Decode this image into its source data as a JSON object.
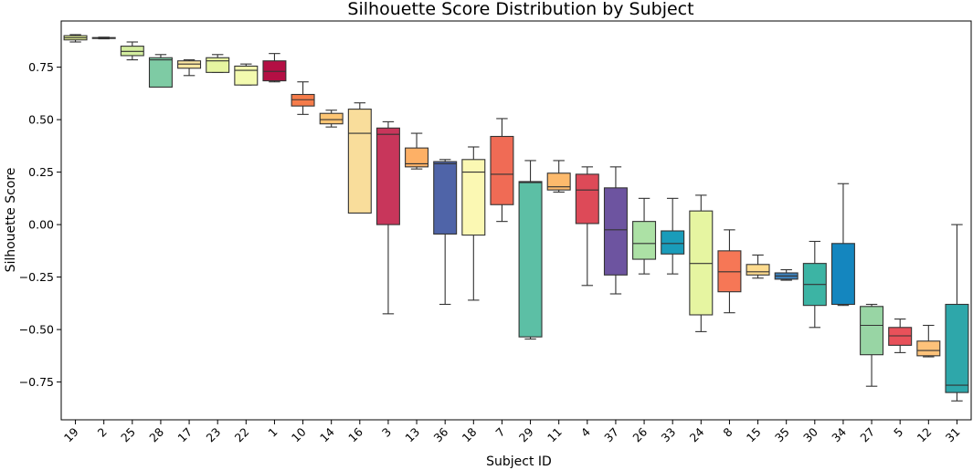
{
  "chart_data": {
    "type": "box",
    "title": "Silhouette Score Distribution by Subject",
    "xlabel": "Subject ID",
    "ylabel": "Silhouette Score",
    "ylim": [
      -0.93,
      0.97
    ],
    "yticks": [
      -0.75,
      -0.5,
      -0.25,
      0.0,
      0.25,
      0.5,
      0.75
    ],
    "ytick_labels": [
      "−0.75",
      "−0.50",
      "−0.25",
      "0.00",
      "0.25",
      "0.50",
      "0.75"
    ],
    "grid": false,
    "legend": "none",
    "categories": [
      "19",
      "2",
      "25",
      "28",
      "17",
      "23",
      "22",
      "1",
      "10",
      "14",
      "16",
      "3",
      "13",
      "36",
      "18",
      "7",
      "29",
      "11",
      "4",
      "37",
      "26",
      "33",
      "24",
      "8",
      "15",
      "35",
      "30",
      "34",
      "27",
      "5",
      "12",
      "31"
    ],
    "boxes": [
      {
        "id": "19",
        "min": 0.87,
        "q1": 0.88,
        "median": 0.89,
        "q3": 0.9,
        "max": 0.905,
        "color": "#e6f598"
      },
      {
        "id": "2",
        "min": 0.885,
        "q1": 0.887,
        "median": 0.889,
        "q3": 0.891,
        "max": 0.893,
        "color": "#abdda4"
      },
      {
        "id": "25",
        "min": 0.785,
        "q1": 0.805,
        "median": 0.825,
        "q3": 0.85,
        "max": 0.87,
        "color": "#d4ee9f"
      },
      {
        "id": "28",
        "min": 0.655,
        "q1": 0.655,
        "median": 0.785,
        "q3": 0.795,
        "max": 0.81,
        "color": "#7ecba4"
      },
      {
        "id": "17",
        "min": 0.71,
        "q1": 0.745,
        "median": 0.765,
        "q3": 0.78,
        "max": 0.785,
        "color": "#fee8a2"
      },
      {
        "id": "23",
        "min": 0.725,
        "q1": 0.725,
        "median": 0.78,
        "q3": 0.795,
        "max": 0.81,
        "color": "#e6f5a1"
      },
      {
        "id": "22",
        "min": 0.665,
        "q1": 0.665,
        "median": 0.735,
        "q3": 0.755,
        "max": 0.765,
        "color": "#f3faaf"
      },
      {
        "id": "1",
        "min": 0.68,
        "q1": 0.685,
        "median": 0.73,
        "q3": 0.78,
        "max": 0.815,
        "color": "#b40f44"
      },
      {
        "id": "10",
        "min": 0.525,
        "q1": 0.565,
        "median": 0.595,
        "q3": 0.62,
        "max": 0.68,
        "color": "#f67c4a"
      },
      {
        "id": "14",
        "min": 0.465,
        "q1": 0.48,
        "median": 0.5,
        "q3": 0.53,
        "max": 0.545,
        "color": "#fdc574"
      },
      {
        "id": "16",
        "min": 0.055,
        "q1": 0.055,
        "median": 0.435,
        "q3": 0.55,
        "max": 0.58,
        "color": "#f9dd9b"
      },
      {
        "id": "3",
        "min": -0.425,
        "q1": 0.0,
        "median": 0.43,
        "q3": 0.46,
        "max": 0.49,
        "color": "#c8365b"
      },
      {
        "id": "13",
        "min": 0.265,
        "q1": 0.275,
        "median": 0.29,
        "q3": 0.365,
        "max": 0.435,
        "color": "#fdb066"
      },
      {
        "id": "36",
        "min": -0.38,
        "q1": -0.045,
        "median": 0.29,
        "q3": 0.3,
        "max": 0.31,
        "color": "#4f64a8"
      },
      {
        "id": "18",
        "min": -0.36,
        "q1": -0.05,
        "median": 0.25,
        "q3": 0.31,
        "max": 0.37,
        "color": "#fbf8b3"
      },
      {
        "id": "7",
        "min": 0.015,
        "q1": 0.095,
        "median": 0.24,
        "q3": 0.42,
        "max": 0.505,
        "color": "#f06b55"
      },
      {
        "id": "29",
        "min": -0.545,
        "q1": -0.535,
        "median": 0.2,
        "q3": 0.205,
        "max": 0.305,
        "color": "#5cbfa5"
      },
      {
        "id": "11",
        "min": 0.155,
        "q1": 0.165,
        "median": 0.18,
        "q3": 0.245,
        "max": 0.305,
        "color": "#fdba6c"
      },
      {
        "id": "4",
        "min": -0.29,
        "q1": 0.005,
        "median": 0.165,
        "q3": 0.24,
        "max": 0.275,
        "color": "#dd4a58"
      },
      {
        "id": "37",
        "min": -0.33,
        "q1": -0.24,
        "median": -0.025,
        "q3": 0.175,
        "max": 0.275,
        "color": "#6d54a0"
      },
      {
        "id": "26",
        "min": -0.235,
        "q1": -0.165,
        "median": -0.09,
        "q3": 0.015,
        "max": 0.125,
        "color": "#ace1a5"
      },
      {
        "id": "33",
        "min": -0.235,
        "q1": -0.14,
        "median": -0.09,
        "q3": -0.03,
        "max": 0.125,
        "color": "#1a9cba"
      },
      {
        "id": "24",
        "min": -0.51,
        "q1": -0.43,
        "median": -0.185,
        "q3": 0.065,
        "max": 0.14,
        "color": "#e6f5a1"
      },
      {
        "id": "8",
        "min": -0.42,
        "q1": -0.32,
        "median": -0.225,
        "q3": -0.125,
        "max": -0.025,
        "color": "#f67756"
      },
      {
        "id": "15",
        "min": -0.255,
        "q1": -0.24,
        "median": -0.225,
        "q3": -0.19,
        "max": -0.145,
        "color": "#fddb8e"
      },
      {
        "id": "35",
        "min": -0.265,
        "q1": -0.26,
        "median": -0.245,
        "q3": -0.23,
        "max": -0.215,
        "color": "#3d7fb8"
      },
      {
        "id": "30",
        "min": -0.49,
        "q1": -0.385,
        "median": -0.285,
        "q3": -0.185,
        "max": -0.08,
        "color": "#3cb4a4"
      },
      {
        "id": "34",
        "min": -0.385,
        "q1": -0.38,
        "median": -0.38,
        "q3": -0.09,
        "max": 0.195,
        "color": "#1486bf"
      },
      {
        "id": "27",
        "min": -0.77,
        "q1": -0.62,
        "median": -0.48,
        "q3": -0.39,
        "max": -0.38,
        "color": "#98d5a4"
      },
      {
        "id": "5",
        "min": -0.61,
        "q1": -0.575,
        "median": -0.53,
        "q3": -0.49,
        "max": -0.45,
        "color": "#e8515a"
      },
      {
        "id": "12",
        "min": -0.63,
        "q1": -0.625,
        "median": -0.6,
        "q3": -0.555,
        "max": -0.48,
        "color": "#fdc27a"
      },
      {
        "id": "31",
        "min": -0.84,
        "q1": -0.8,
        "median": -0.765,
        "q3": -0.38,
        "max": 0.0,
        "color": "#2ea7aa"
      }
    ]
  }
}
